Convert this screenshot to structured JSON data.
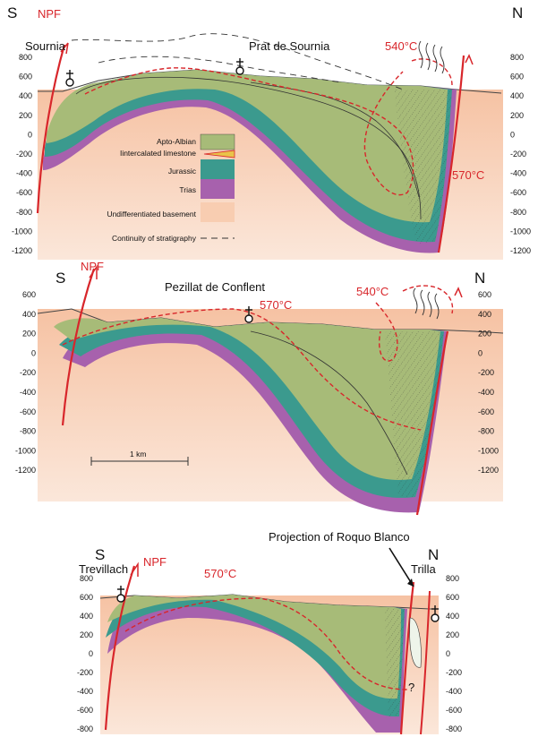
{
  "colors": {
    "apto_albian": "#a7bb78",
    "limestone": "#e9c34a",
    "jurassic": "#3b9a8e",
    "trias": "#a761ad",
    "basement": "#f8cdb1",
    "red": "#d8262b",
    "line": "#222222"
  },
  "sections": [
    {
      "south": "S",
      "north": "N",
      "fault": "NPF",
      "locality_left": "Sournia",
      "locality_center": "Prat de Sournia",
      "temp_a": "540°C",
      "temp_b": "570°C",
      "ticks_left": [
        "800",
        "600",
        "400",
        "200",
        "0",
        "-200",
        "-400",
        "-600",
        "-800",
        "-1000",
        "-1200"
      ],
      "ticks_right": [
        "800",
        "600",
        "400",
        "200",
        "0",
        "-200",
        "-400",
        "-600",
        "-800",
        "-1000",
        "-1200"
      ]
    },
    {
      "south": "S",
      "north": "N",
      "fault": "NPF",
      "locality_center": "Pezillat de Conflent",
      "temp_a": "570°C",
      "temp_b": "540°C",
      "scale": "1 km",
      "ticks_left": [
        "600",
        "400",
        "200",
        "0",
        "-200",
        "-400",
        "-600",
        "-800",
        "-1000",
        "-1200"
      ],
      "ticks_right": [
        "600",
        "400",
        "200",
        "0",
        "-200",
        "-400",
        "-600",
        "-800",
        "-1000",
        "-1200"
      ]
    },
    {
      "south": "S",
      "north": "N",
      "fault": "NPF",
      "locality_left": "Trevillach",
      "locality_right": "Trilla",
      "temp_a": "570°C",
      "projection": "Projection of Roquo Blanco",
      "question": "?",
      "ticks_left": [
        "800",
        "600",
        "400",
        "200",
        "0",
        "-200",
        "-400",
        "-600",
        "-800"
      ],
      "ticks_right": [
        "800",
        "600",
        "400",
        "200",
        "0",
        "-200",
        "-400",
        "-600",
        "-800"
      ]
    }
  ],
  "legend": {
    "apto_albian": "Apto-Albian",
    "limestone": "Iintercalated limestone",
    "jurassic": "Jurassic",
    "trias": "Trias",
    "basement": "Undifferentiated basement",
    "continuity": "Continuity of stratigraphy"
  }
}
